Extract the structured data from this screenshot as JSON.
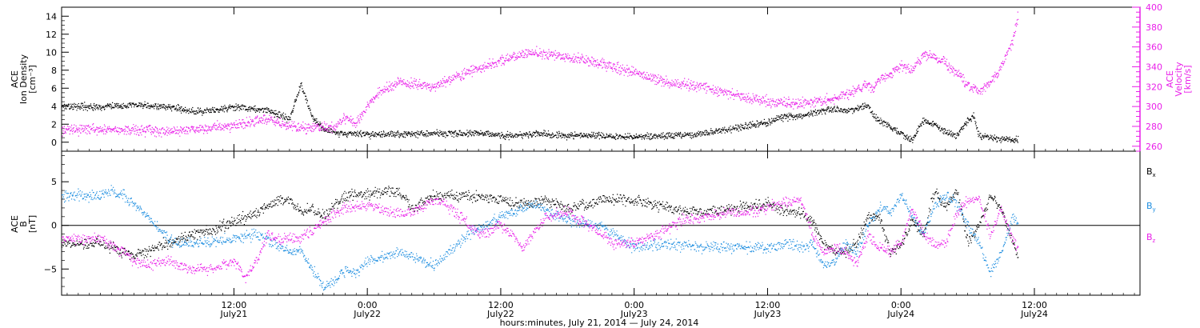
{
  "chart_data": [
    {
      "type": "scatter",
      "panel": "top",
      "ylabel_left": [
        "ACE",
        "Ion Density",
        "[cm⁻³]"
      ],
      "ylabel_right": [
        "ACE",
        "Velocity",
        "[km/s]"
      ],
      "y_left_range": [
        -1,
        15
      ],
      "y_left_ticks": [
        0,
        2,
        4,
        6,
        8,
        10,
        12,
        14
      ],
      "y_left_tick_labels": [
        "0",
        "2",
        "4",
        "6",
        "8",
        "10",
        "12",
        "14"
      ],
      "y_right_range": [
        255,
        400
      ],
      "y_right_ticks": [
        260,
        280,
        300,
        320,
        340,
        360,
        380,
        400
      ],
      "y_right_tick_labels": [
        "260",
        "280",
        "300",
        "320",
        "340",
        "360",
        "380",
        "400"
      ],
      "series": [
        {
          "key": "density",
          "axis": "left",
          "color": "#000000",
          "knots_hours": [
            0,
            3,
            6,
            8,
            10,
            12,
            15,
            17,
            18,
            19,
            20,
            21,
            22,
            24,
            27,
            30,
            33,
            35,
            36,
            39,
            42,
            45,
            48,
            51,
            54,
            57,
            60,
            61,
            63,
            65,
            66,
            67,
            68,
            69,
            69.5,
            70,
            71,
            72,
            72.5,
            73,
            74,
            75,
            76,
            77,
            78,
            78.5,
            79,
            80,
            81,
            82,
            82.5
          ],
          "knots_values": [
            4.0,
            4.2,
            4.0,
            3.5,
            3.5,
            4.0,
            3.6,
            2.6,
            6.5,
            2.8,
            1.5,
            1.2,
            1.0,
            0.9,
            0.9,
            1.0,
            1.0,
            1.0,
            0.7,
            1.0,
            0.8,
            0.8,
            0.6,
            0.8,
            1.0,
            1.6,
            2.2,
            2.8,
            3.0,
            3.5,
            3.8,
            3.5,
            3.8,
            4.2,
            3.0,
            2.5,
            1.8,
            1.0,
            0.5,
            0.3,
            2.5,
            2.0,
            1.2,
            0.8,
            2.5,
            3.0,
            0.6,
            0.6,
            0.4,
            0.3,
            0.3
          ]
        },
        {
          "key": "velocity",
          "axis": "right",
          "color": "#e91ee9",
          "knots_hours": [
            0,
            3,
            6,
            9,
            12,
            15,
            18,
            21,
            22,
            23,
            24,
            25,
            27,
            30,
            33,
            36,
            39,
            42,
            45,
            48,
            51,
            54,
            57,
            60,
            63,
            66,
            67,
            69,
            69.5,
            70,
            71,
            72,
            73,
            74,
            75,
            76,
            77,
            78,
            79,
            80,
            81,
            82,
            82.5
          ],
          "knots_values": [
            277,
            277,
            275,
            278,
            281,
            287,
            279,
            280,
            290,
            283,
            300,
            315,
            325,
            320,
            335,
            347,
            355,
            350,
            344,
            335,
            324,
            320,
            312,
            305,
            303,
            308,
            313,
            322,
            318,
            328,
            332,
            341,
            337,
            352,
            351,
            343,
            334,
            322,
            315,
            325,
            340,
            366,
            392
          ]
        }
      ]
    },
    {
      "type": "scatter",
      "panel": "bottom",
      "ylabel_left": [
        "ACE",
        "B",
        "[nT]"
      ],
      "y_range": [
        -8,
        8.5
      ],
      "y_ticks": [
        -5,
        0,
        5
      ],
      "y_tick_labels": [
        "−5",
        "0",
        "5"
      ],
      "zero_line": true,
      "series": [
        {
          "key": "bx",
          "name": "B",
          "sub": "x",
          "color": "#000000",
          "knots_hours": [
            0,
            3,
            6,
            8,
            10,
            12,
            14,
            16,
            17,
            18,
            19,
            20,
            22,
            24,
            26,
            27,
            28,
            30,
            33,
            36,
            38,
            40,
            42,
            45,
            48,
            51,
            54,
            57,
            60,
            62,
            63,
            64,
            65,
            66,
            67,
            68,
            69,
            70,
            71,
            72,
            73,
            74,
            75,
            76,
            77,
            78,
            79,
            80,
            81,
            82,
            82.5
          ],
          "knots_values": [
            -2.0,
            -3.5,
            -2.0,
            -1.0,
            -0.5,
            0.5,
            1.5,
            3.0,
            3.0,
            1.5,
            2.0,
            1.0,
            3.5,
            3.5,
            4.0,
            3.5,
            2.0,
            3.5,
            3.5,
            3.0,
            2.5,
            3.0,
            2.0,
            3.0,
            3.0,
            2.0,
            1.5,
            2.0,
            2.5,
            1.5,
            1.5,
            0.5,
            -2.0,
            -3.0,
            -3.0,
            -2.0,
            1.0,
            1.0,
            -3.0,
            -2.0,
            0.5,
            -1.0,
            4.0,
            2.0,
            4.0,
            -2.0,
            0.0,
            3.5,
            2.0,
            -2.0,
            -3.5
          ]
        },
        {
          "key": "by",
          "name": "B",
          "sub": "y",
          "color": "#1e8ee0",
          "knots_hours": [
            0,
            1,
            2,
            3,
            4,
            5,
            6,
            7,
            9,
            12,
            14,
            15,
            16,
            18,
            19,
            20,
            21,
            22,
            23,
            24,
            27,
            30,
            33,
            36,
            39,
            42,
            45,
            48,
            51,
            54,
            57,
            60,
            62,
            63,
            64,
            65,
            66,
            67,
            68,
            69,
            70,
            71,
            72,
            73,
            74,
            75,
            76,
            77,
            78,
            79,
            80,
            81,
            82,
            82.5
          ],
          "knots_values": [
            3.5,
            4.0,
            3.5,
            2.5,
            1.5,
            0.0,
            -1.5,
            -2.0,
            -2.0,
            -1.5,
            -1.0,
            -1.5,
            -2.5,
            -3.0,
            -5.0,
            -7.0,
            -6.5,
            -5.0,
            -5.5,
            -4.0,
            -3.0,
            -4.5,
            -1.0,
            1.0,
            2.5,
            0.5,
            0.0,
            -2.5,
            -2.0,
            -2.5,
            -2.5,
            -2.5,
            -2.0,
            -2.5,
            -2.0,
            -4.5,
            -4.0,
            -2.0,
            -3.0,
            0.0,
            2.0,
            1.5,
            3.5,
            1.0,
            -1.0,
            2.5,
            3.5,
            2.5,
            0.0,
            -2.0,
            -5.5,
            -3.0,
            1.0,
            0.5
          ]
        },
        {
          "key": "bz",
          "name": "B",
          "sub": "z",
          "color": "#e91ee9",
          "knots_hours": [
            0,
            2,
            3,
            4,
            6,
            8,
            10,
            12,
            13,
            14,
            15,
            16,
            17,
            18,
            20,
            22,
            24,
            26,
            28,
            30,
            32,
            34,
            36,
            38,
            40,
            42,
            44,
            46,
            48,
            50,
            52,
            54,
            56,
            58,
            60,
            61,
            63,
            64,
            65,
            66,
            67,
            68,
            69,
            70,
            71,
            72,
            73,
            74,
            75,
            76,
            77,
            78,
            79,
            80,
            81,
            82,
            82.5
          ],
          "knots_values": [
            -1.5,
            -3.0,
            -4.0,
            -4.5,
            -4.0,
            -5.0,
            -5.0,
            -4.0,
            -6.0,
            -4.0,
            -1.0,
            -1.5,
            -1.5,
            -1.5,
            0.5,
            2.0,
            2.5,
            1.5,
            1.5,
            3.0,
            1.5,
            -1.0,
            0.0,
            -2.5,
            1.0,
            1.5,
            0.0,
            -2.0,
            -2.0,
            -1.0,
            0.5,
            1.0,
            1.5,
            1.5,
            2.0,
            2.5,
            3.0,
            -1.0,
            -3.0,
            -2.5,
            -3.0,
            -4.5,
            -1.0,
            -2.5,
            -3.0,
            -2.0,
            2.0,
            -1.0,
            -2.0,
            -2.0,
            1.5,
            3.0,
            3.0,
            -1.0,
            2.0,
            -1.5,
            -2.5
          ]
        }
      ]
    }
  ],
  "x_axis": {
    "range_hours": [
      -3.5,
      93.5
    ],
    "start_label": "July 21, 2014",
    "tick_hours": [
      12,
      24,
      36,
      48,
      60,
      72,
      84
    ],
    "tick_labels": [
      "12:00",
      "0:00",
      "12:00",
      "0:00",
      "12:00",
      "0:00",
      "12:00"
    ],
    "tick_dates": [
      "July21",
      "July22",
      "July22",
      "July23",
      "July23",
      "July24",
      "July24"
    ],
    "minor_tick_step_hours": 1,
    "xlabel": "hours:minutes, July 21, 2014 — July 24, 2014"
  },
  "data_end_hour": 82.5
}
